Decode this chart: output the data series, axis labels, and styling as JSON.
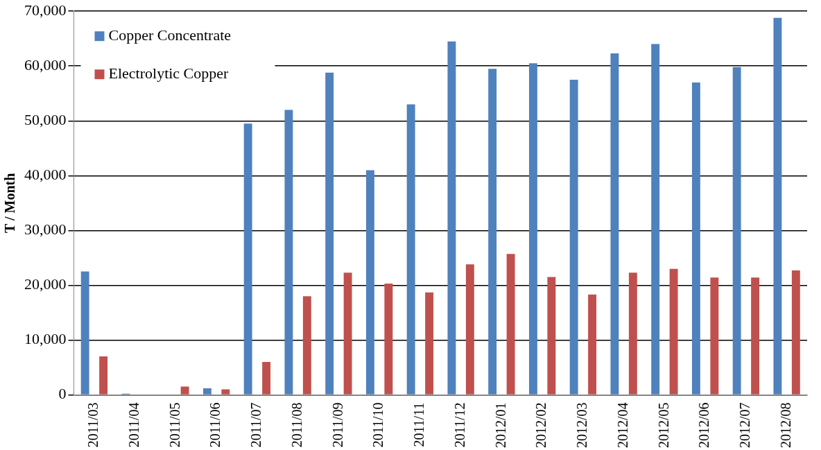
{
  "chart_data": {
    "type": "bar",
    "ylabel": "T / Month",
    "categories": [
      "2011/03",
      "2011/04",
      "2011/05",
      "2011/06",
      "2011/07",
      "2011/08",
      "2011/09",
      "2011/10",
      "2011/11",
      "2011/12",
      "2012/01",
      "2012/02",
      "2012/03",
      "2012/04",
      "2012/05",
      "2012/06",
      "2012/07",
      "2012/08"
    ],
    "series": [
      {
        "name": "Copper Concentrate",
        "color": "#4f81bd",
        "values": [
          22500,
          200,
          100,
          1200,
          49500,
          52000,
          58800,
          41000,
          53000,
          64500,
          59500,
          60500,
          57500,
          62300,
          64000,
          57000,
          59800,
          68800
        ]
      },
      {
        "name": "Electrolytic Copper",
        "color": "#c0504d",
        "values": [
          7000,
          0,
          1500,
          1000,
          6000,
          18000,
          22300,
          20300,
          18700,
          23800,
          25700,
          21500,
          18300,
          22300,
          23000,
          21400,
          21400,
          22700
        ]
      }
    ],
    "ylim": [
      0,
      70000
    ],
    "yticks": [
      {
        "value": 0,
        "label": "0"
      },
      {
        "value": 10000,
        "label": "10,000"
      },
      {
        "value": 20000,
        "label": "20,000"
      },
      {
        "value": 30000,
        "label": "30,000"
      },
      {
        "value": 40000,
        "label": "40,000"
      },
      {
        "value": 50000,
        "label": "50,000"
      },
      {
        "value": 60000,
        "label": "60,000"
      },
      {
        "value": 70000,
        "label": "70,000"
      }
    ],
    "grid": "y",
    "legend": "top left"
  }
}
